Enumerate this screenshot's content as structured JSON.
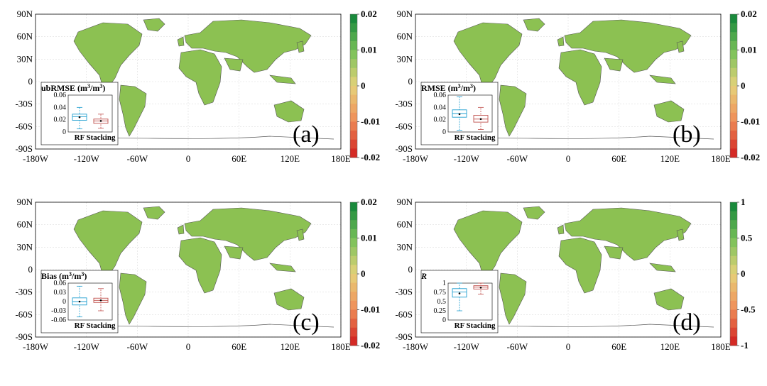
{
  "figure": {
    "lat_ticks": [
      "90N",
      "60N",
      "30N",
      "0",
      "-30S",
      "-60S",
      "-90S"
    ],
    "lon_ticks": [
      "-180W",
      "-120W",
      "-60W",
      "0",
      "60E",
      "120E",
      "180E"
    ],
    "box_categories": [
      "RF",
      "Stacking"
    ],
    "colors": {
      "rf": "#1f9fd0",
      "stacking": "#c0504d",
      "land": "#8cc152",
      "coast": "#555555"
    }
  },
  "chart_data": [
    {
      "type": "map",
      "panel_label": "(a)",
      "inset_title": "ubRMSE (m",
      "inset_unit_sup": "3",
      "inset_title_mid": "/m",
      "inset_title_end": ")",
      "colorbar": {
        "ticks": [
          "0.02",
          "0.01",
          "0",
          "-0.01",
          "-0.02"
        ],
        "range": [
          -0.02,
          0.02
        ]
      },
      "boxplot": {
        "ylim": [
          0,
          0.06
        ],
        "yticks": [
          "0.06",
          "0.04",
          "0.02",
          "0"
        ],
        "series": [
          {
            "name": "RF",
            "whisker_low": 0.005,
            "q1": 0.019,
            "median": 0.025,
            "q3": 0.029,
            "whisker_high": 0.04,
            "mean": 0.024
          },
          {
            "name": "Stacking",
            "whisker_low": 0.006,
            "q1": 0.014,
            "median": 0.018,
            "q3": 0.021,
            "whisker_high": 0.029,
            "mean": 0.018
          }
        ]
      }
    },
    {
      "type": "map",
      "panel_label": "(b)",
      "inset_title": "RMSE (m",
      "inset_unit_sup": "3",
      "inset_title_mid": "/m",
      "inset_title_end": ")",
      "colorbar": {
        "ticks": [
          "0.02",
          "0.01",
          "0",
          "-0.01",
          "-0.02"
        ],
        "range": [
          -0.02,
          0.02
        ]
      },
      "boxplot": {
        "ylim": [
          0,
          0.06
        ],
        "yticks": [
          "0.06",
          "0.04",
          "0.02",
          "0"
        ],
        "series": [
          {
            "name": "RF",
            "whisker_low": 0.003,
            "q1": 0.024,
            "median": 0.03,
            "q3": 0.036,
            "whisker_high": 0.057,
            "mean": 0.029
          },
          {
            "name": "Stacking",
            "whisker_low": 0.004,
            "q1": 0.016,
            "median": 0.021,
            "q3": 0.027,
            "whisker_high": 0.04,
            "mean": 0.021
          }
        ]
      }
    },
    {
      "type": "map",
      "panel_label": "(c)",
      "inset_title": "Bias (m",
      "inset_unit_sup": "3",
      "inset_title_mid": "/m",
      "inset_title_end": ")",
      "colorbar": {
        "ticks": [
          "0.02",
          "0.01",
          "0",
          "-0.01",
          "-0.02"
        ],
        "range": [
          -0.02,
          0.02
        ]
      },
      "boxplot": {
        "ylim": [
          -0.06,
          0.06
        ],
        "yticks": [
          "0.06",
          "0.03",
          "0",
          "-0.03",
          "-0.06"
        ],
        "series": [
          {
            "name": "RF",
            "whisker_low": -0.05,
            "q1": -0.011,
            "median": 0.0,
            "q3": 0.012,
            "whisker_high": 0.05,
            "mean": 0.0
          },
          {
            "name": "Stacking",
            "whisker_low": -0.03,
            "q1": -0.003,
            "median": 0.004,
            "q3": 0.011,
            "whisker_high": 0.042,
            "mean": 0.004
          }
        ]
      }
    },
    {
      "type": "map",
      "panel_label": "(d)",
      "inset_title": "R",
      "inset_italic": true,
      "colorbar": {
        "ticks": [
          "1",
          "0.5",
          "0",
          "-0.5",
          "-1"
        ],
        "range": [
          -1,
          1
        ]
      },
      "boxplot": {
        "ylim": [
          0,
          1
        ],
        "yticks": [
          "1",
          "0.75",
          "0.5",
          "0.25",
          "0"
        ],
        "series": [
          {
            "name": "RF",
            "whisker_low": 0.25,
            "q1": 0.62,
            "median": 0.76,
            "q3": 0.85,
            "whisker_high": 1.0,
            "mean": 0.72
          },
          {
            "name": "Stacking",
            "whisker_low": 0.7,
            "q1": 0.84,
            "median": 0.89,
            "q3": 0.93,
            "whisker_high": 1.0,
            "mean": 0.88
          }
        ]
      }
    }
  ]
}
